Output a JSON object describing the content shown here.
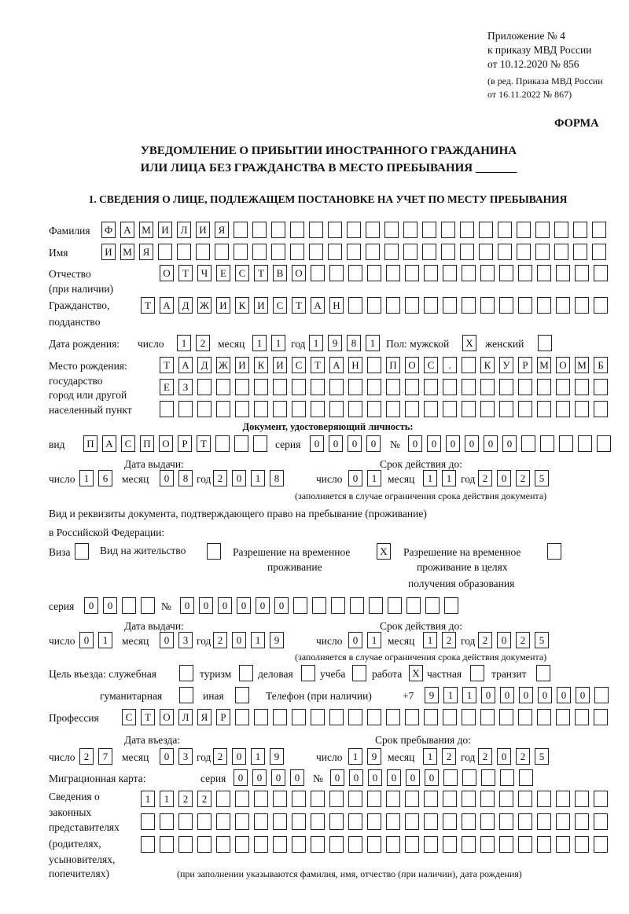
{
  "header": {
    "appendix": "Приложение № 4",
    "order": "к приказу МВД России",
    "order_date": "от 10.12.2020 № 856",
    "edition1": "(в ред. Приказа МВД России",
    "edition2": "от 16.11.2022 № 867)",
    "form_label": "ФОРМА",
    "title_line1": "УВЕДОМЛЕНИЕ О ПРИБЫТИИ ИНОСТРАННОГО ГРАЖДАНИНА",
    "title_line2": "ИЛИ ЛИЦА БЕЗ ГРАЖДАНСТВА В МЕСТО ПРЕБЫВАНИЯ _______",
    "section1": "1. СВЕДЕНИЯ О ЛИЦЕ, ПОДЛЕЖАЩЕМ ПОСТАНОВКЕ НА УЧЕТ ПО МЕСТУ ПРЕБЫВАНИЯ"
  },
  "person": {
    "surname_label": "Фамилия",
    "surname": "ФАМИЛИЯ",
    "name_label": "Имя",
    "name": "ИМЯ",
    "patronymic_label": "Отчество",
    "patronymic_note": "(при наличии)",
    "patronymic": "ОТЧЕСТВО",
    "citizenship_label1": "Гражданство,",
    "citizenship_label2": "подданство",
    "citizenship": "ТАДЖИКИСТАН",
    "birth_label": "Дата рождения:",
    "day_label": "число",
    "month_label": "месяц",
    "year_label": "год",
    "birth_day": "12",
    "birth_month": "11",
    "birth_year": "1981",
    "sex_label": "Пол: мужской",
    "male": "X",
    "female_label": "женский",
    "female": "",
    "birthplace_label1": "Место рождения:",
    "birthplace_label2": "государство",
    "birthplace_label3": "город или другой",
    "birthplace_label4": "населенный пункт",
    "birthplace_line1": "ТАДЖИКИСТАН ПОС. КУРМОМБ",
    "birthplace_line2": "ЕЗ",
    "birthplace_line3": ""
  },
  "identity_doc": {
    "heading": "Документ, удостоверяющий личность:",
    "type_label": "вид",
    "type": "ПАСПОРТ",
    "series_label": "серия",
    "series": "0000",
    "number_label": "№",
    "number": "000000",
    "issue_label": "Дата выдачи:",
    "valid_label": "Срок действия до:",
    "day_label": "число",
    "month_label": "месяц",
    "year_label": "год",
    "issue_day": "16",
    "issue_month": "08",
    "issue_year": "2018",
    "valid_day": "01",
    "valid_month": "11",
    "valid_year": "2025",
    "note": "(заполняется в случае ограничения срока действия документа)"
  },
  "stay_doc": {
    "heading1": "Вид и реквизиты документа, подтверждающего право на пребывание (проживание)",
    "heading2": "в Российской Федерации:",
    "visa_label": "Виза",
    "visa": "",
    "residence_label": "Вид на жительство",
    "residence": "",
    "temp_label1": "Разрешение на временное",
    "temp_label2": "проживание",
    "temp": "X",
    "edu_label1": "Разрешение на временное",
    "edu_label2": "проживание в целях",
    "edu_label3": "получения образования",
    "edu": "",
    "series_label": "серия",
    "series": "00",
    "number_label": "№",
    "number": "000000",
    "issue_label": "Дата выдачи:",
    "valid_label": "Срок действия до:",
    "day_label": "число",
    "month_label": "месяц",
    "year_label": "год",
    "issue_day": "01",
    "issue_month": "03",
    "issue_year": "2019",
    "valid_day": "01",
    "valid_month": "12",
    "valid_year": "2025",
    "note": "(заполняется в случае ограничения срока действия документа)"
  },
  "purpose": {
    "label": "Цель въезда: служебная",
    "official": "",
    "tourism_label": "туризм",
    "tourism": "",
    "business_label": "деловая",
    "business": "",
    "study_label": "учеба",
    "study": "",
    "work_label": "работа",
    "work": "X",
    "private_label": "частная",
    "private": "",
    "transit_label": "транзит",
    "transit": "",
    "humanitarian_label": "гуманитарная",
    "humanitarian": "",
    "other_label": "иная",
    "other": "",
    "phone_label": "Телефон (при наличии)",
    "phone_prefix": "+7",
    "phone": "911000000"
  },
  "profession": {
    "label": "Профессия",
    "value": "СТОЛЯР"
  },
  "entry": {
    "entry_label": "Дата въезда:",
    "stay_label": "Срок пребывания до:",
    "day_label": "число",
    "month_label": "месяц",
    "year_label": "год",
    "entry_day": "27",
    "entry_month": "03",
    "entry_year": "2019",
    "stay_day": "19",
    "stay_month": "12",
    "stay_year": "2025"
  },
  "migration_card": {
    "label": "Миграционная карта:",
    "series_label": "серия",
    "series": "0000",
    "number_label": "№",
    "number": "000000"
  },
  "representatives": {
    "label1": "Сведения о",
    "label2": "законных",
    "label3": "представителях",
    "label4": "(родителях,",
    "label5": "усыновителях,",
    "label6": "попечителях)",
    "line1": "1122",
    "line2": "",
    "line3": "",
    "note": "(при заполнении указываются фамилия, имя, отчество (при наличии), дата рождения)"
  }
}
